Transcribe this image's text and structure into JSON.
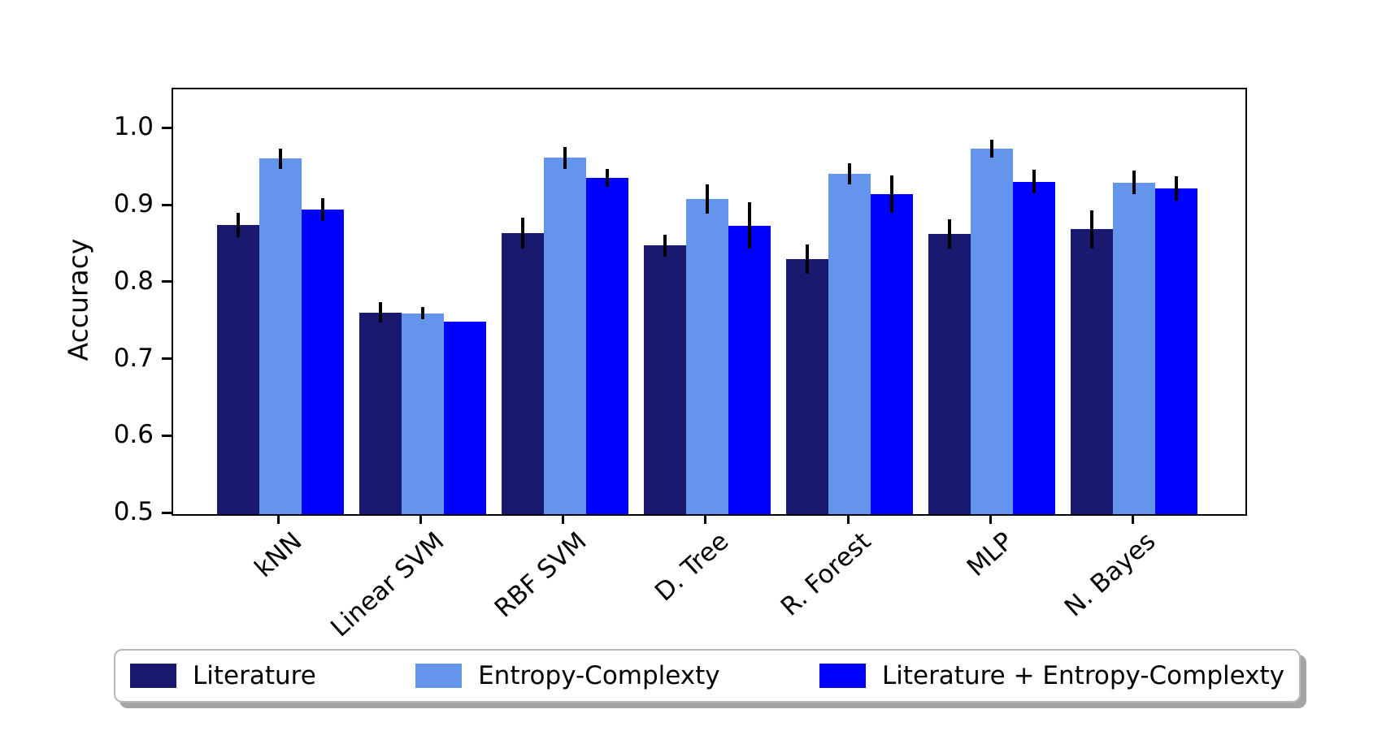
{
  "chart_data": {
    "type": "bar",
    "title": "",
    "xlabel": "",
    "ylabel": "Accuracy",
    "ylim": [
      0.5,
      1.052
    ],
    "yticks": [
      1.0,
      0.9,
      0.8,
      0.7,
      0.6,
      0.5
    ],
    "ytick_labels": [
      "1.0",
      "0.9",
      "0.8",
      "0.7",
      "0.6",
      "0.5"
    ],
    "grid": false,
    "legend_position": "bottom",
    "error_bar_color": "#000000",
    "categories": [
      "kNN",
      "Linear SVM",
      "RBF SVM",
      "D. Tree",
      "R. Forest",
      "MLP",
      "N. Bayes"
    ],
    "series": [
      {
        "name": "Literature",
        "color": "#191970",
        "values": [
          0.876,
          0.762,
          0.865,
          0.849,
          0.831,
          0.864,
          0.87
        ],
        "errors": [
          0.016,
          0.013,
          0.02,
          0.014,
          0.019,
          0.019,
          0.025
        ]
      },
      {
        "name": "Entropy-Complexty",
        "color": "#6495ED",
        "values": [
          0.962,
          0.761,
          0.963,
          0.91,
          0.942,
          0.975,
          0.931
        ],
        "errors": [
          0.013,
          0.008,
          0.014,
          0.019,
          0.014,
          0.012,
          0.015
        ]
      },
      {
        "name": "Literature + Entropy-Complexty",
        "color": "#0000FF",
        "values": [
          0.896,
          0.75,
          0.937,
          0.875,
          0.916,
          0.932,
          0.923
        ],
        "errors": [
          0.015,
          0.0,
          0.012,
          0.03,
          0.024,
          0.015,
          0.016
        ]
      }
    ]
  }
}
